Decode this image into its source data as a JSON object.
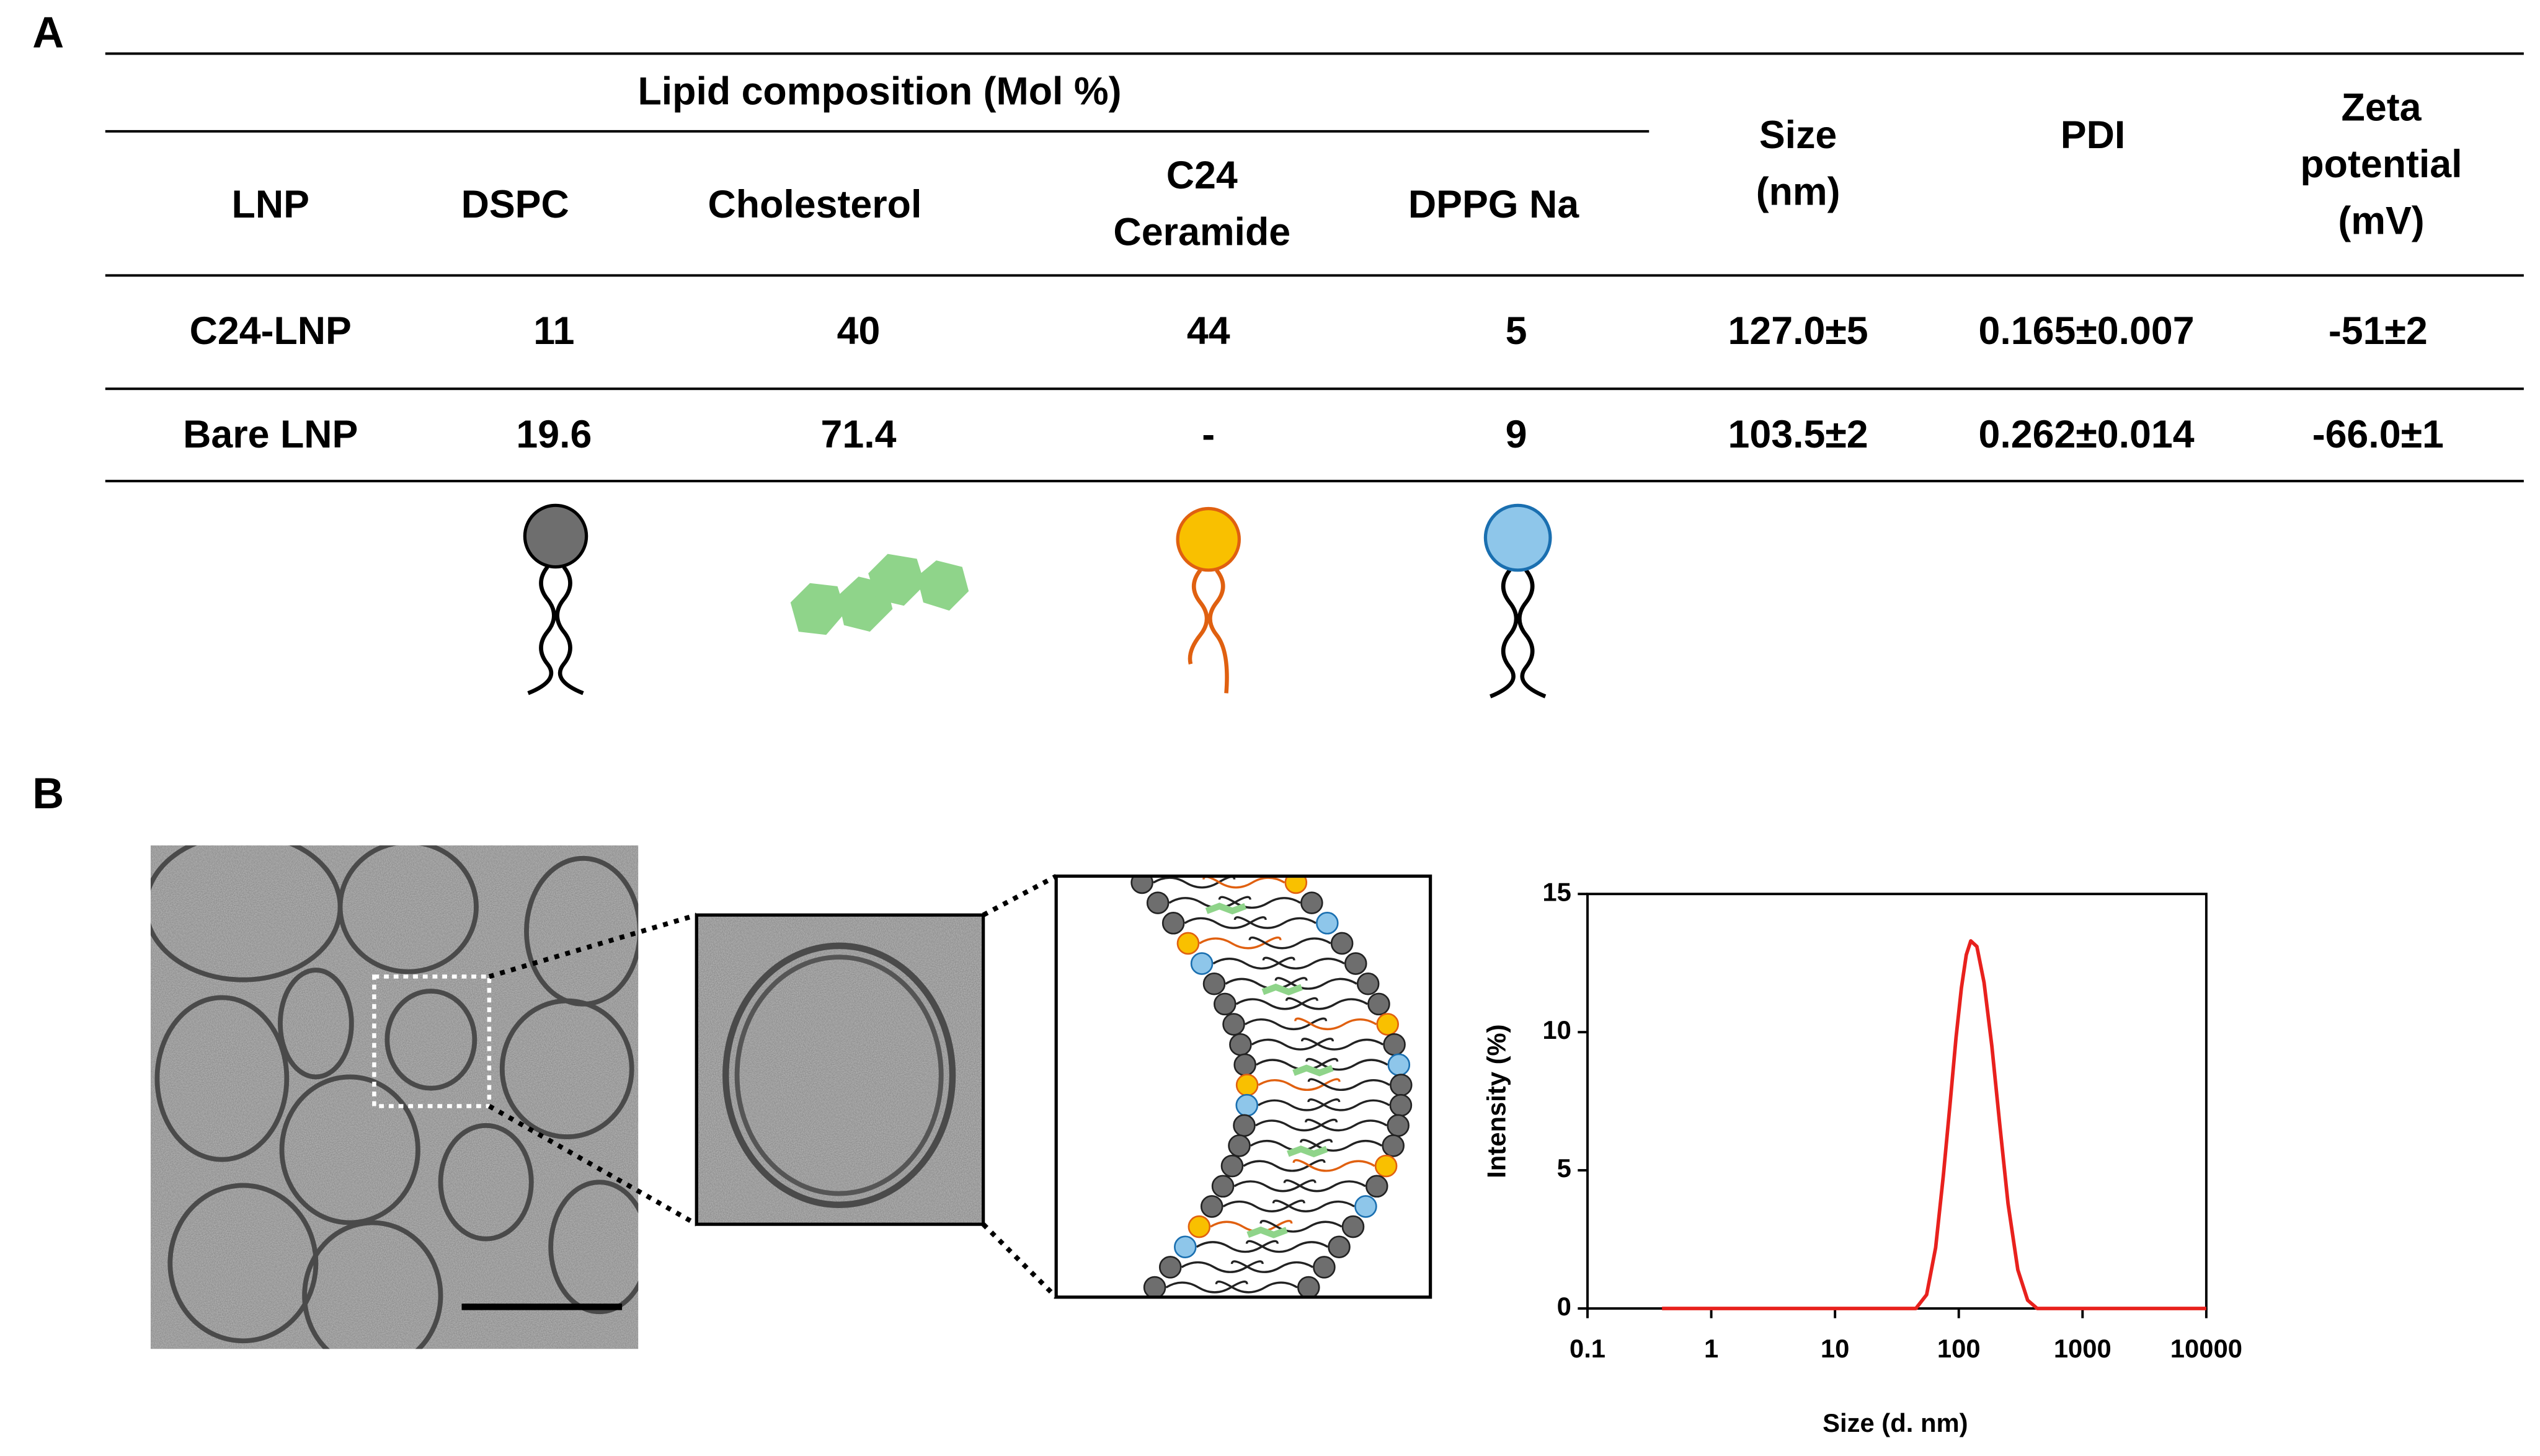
{
  "panels": [
    "A",
    "B"
  ],
  "table": {
    "group_header": "Lipid composition (Mol %)",
    "header": [
      [
        "LNP"
      ],
      [
        "DSPC"
      ],
      [
        "Cholesterol"
      ],
      [
        "C24",
        "Ceramide"
      ],
      [
        "DPPG Na"
      ],
      [
        "Size",
        "(nm)"
      ],
      [
        "PDI"
      ],
      [
        "Zeta",
        "potential",
        "(mV)"
      ]
    ],
    "rows": [
      [
        "C24-LNP",
        11,
        40,
        44,
        5,
        "127.0±5",
        "0.165±0.007",
        "-51±2"
      ],
      [
        "Bare LNP",
        19.6,
        71.4,
        "-",
        9,
        "103.5±2",
        "0.262±0.014",
        "-66.0±1"
      ]
    ]
  },
  "chart_data": {
    "type": "line",
    "x_label": "Size (d. nm)",
    "y_label": "Intensity (%)",
    "x": [
      0.4,
      10,
      45,
      55,
      65,
      75,
      85,
      95,
      105,
      115,
      125,
      140,
      160,
      185,
      215,
      250,
      300,
      360,
      430,
      1000,
      10000
    ],
    "values": [
      0,
      0,
      0,
      0.5,
      2.2,
      4.8,
      7.4,
      9.8,
      11.6,
      12.8,
      13.3,
      13.1,
      11.8,
      9.5,
      6.6,
      3.8,
      1.4,
      0.3,
      0,
      0,
      0
    ],
    "color": "#e8211d",
    "xscale": "log",
    "xlim": [
      0.1,
      10000
    ],
    "xticks": [
      0.1,
      1,
      10,
      100,
      1000,
      10000
    ],
    "ylim": [
      0,
      15
    ],
    "yticks": [
      0,
      5,
      10,
      15
    ]
  }
}
